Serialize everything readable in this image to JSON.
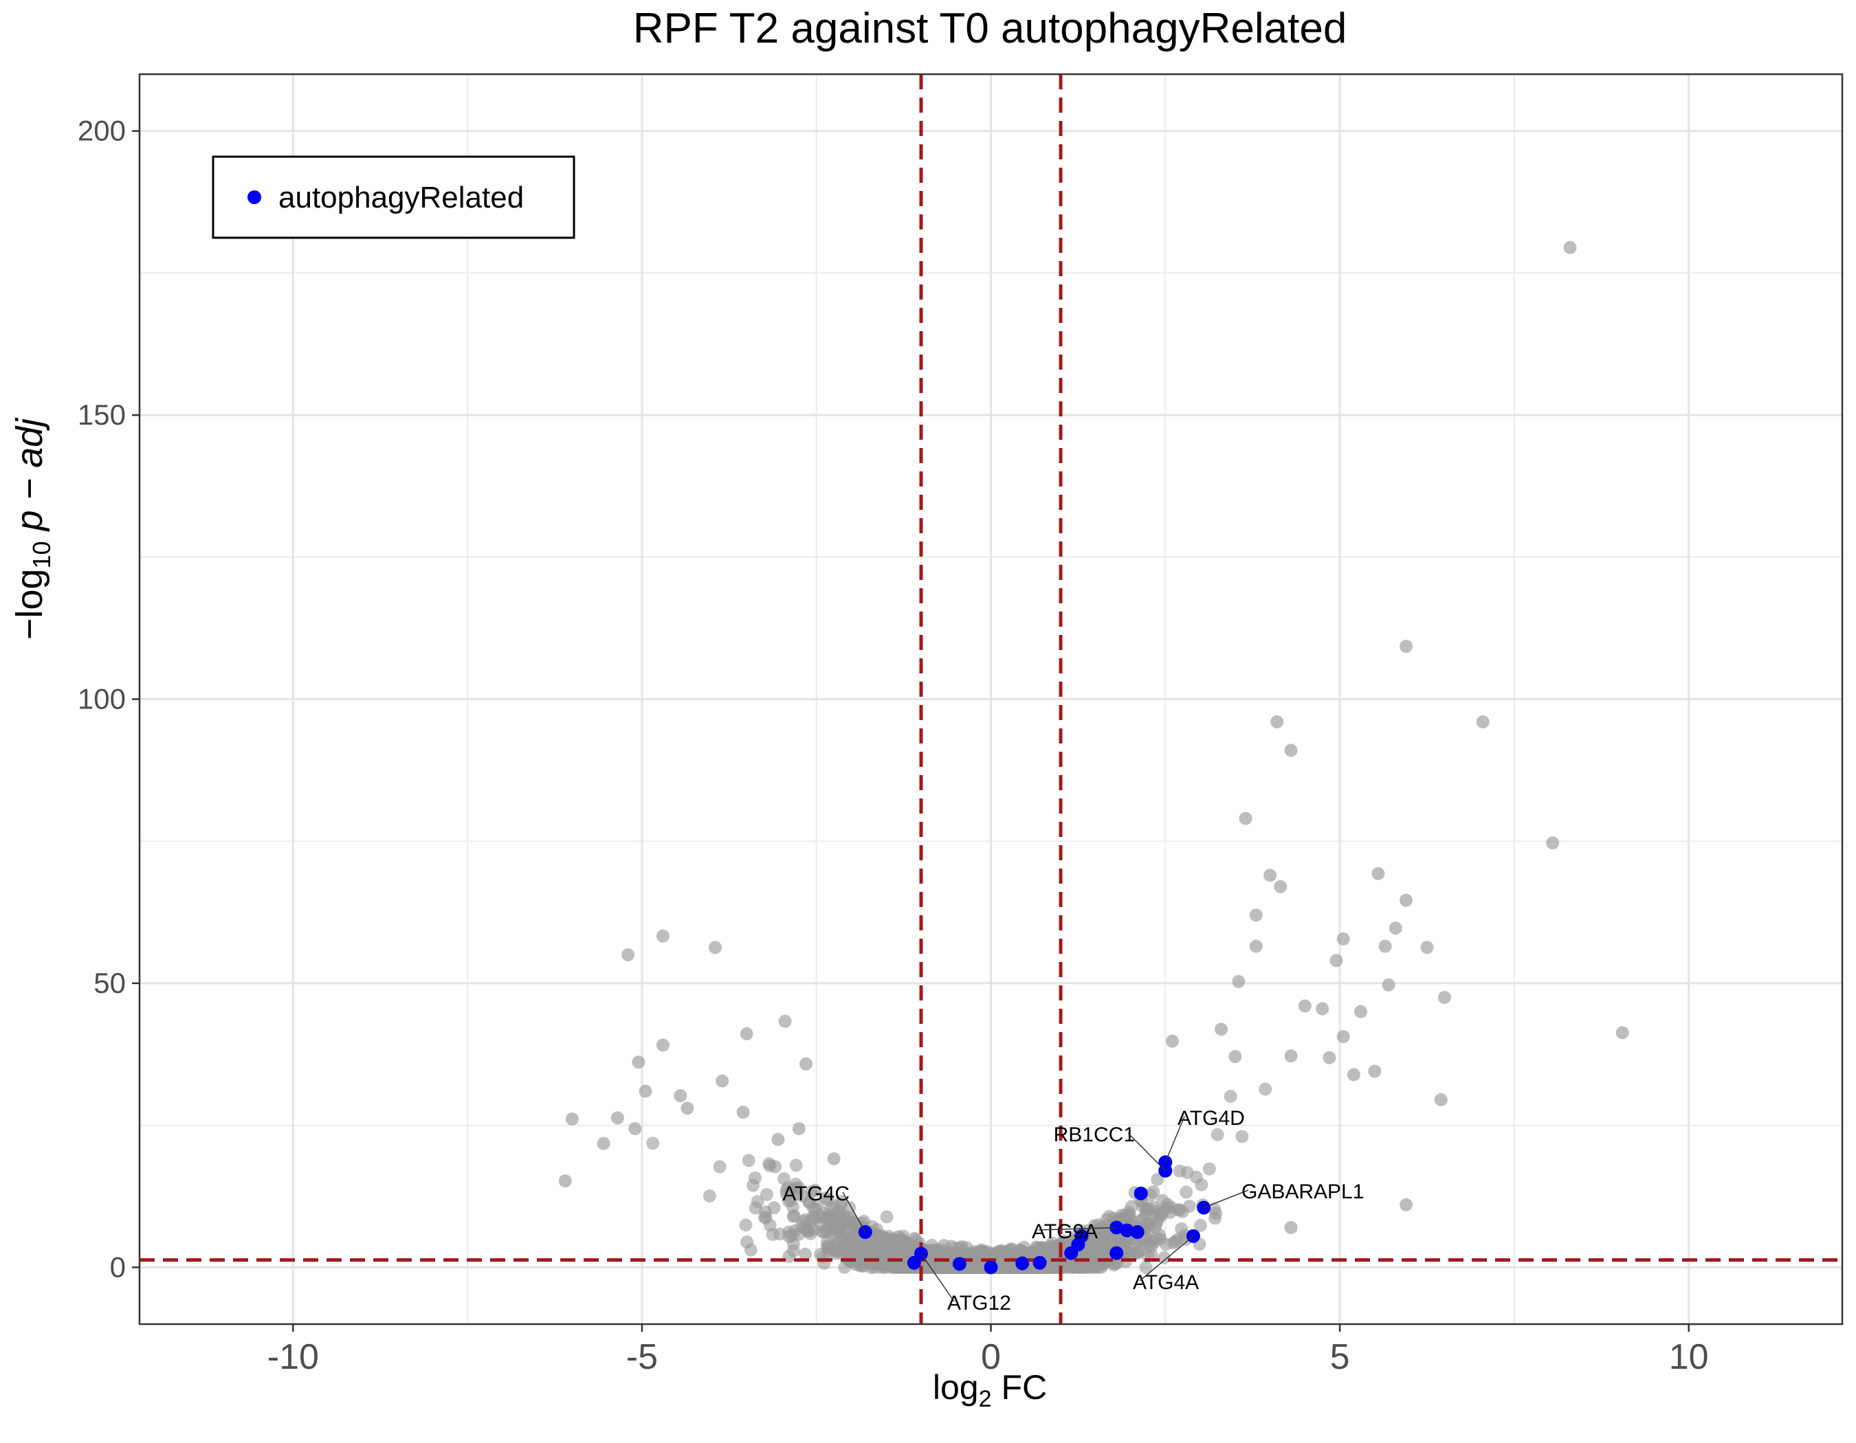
{
  "chart_data": {
    "type": "scatter",
    "title": "RPF T2 against T0 autophagyRelated",
    "xlabel": "log",
    "xlabel_sub": "2",
    "xlabel_suffix": " FC",
    "ylabel_prefix": "−log",
    "ylabel_sub": "10",
    "ylabel_suffix": " p − adj",
    "xlim": [
      -12.2,
      12.2
    ],
    "ylim": [
      -10,
      210
    ],
    "x_ticks": [
      -10,
      -5,
      0,
      5,
      10
    ],
    "x_tick_labels": [
      "-10",
      "-5",
      "0",
      "5",
      "10"
    ],
    "y_ticks": [
      0,
      50,
      100,
      150,
      200
    ],
    "y_tick_labels": [
      "0",
      "50",
      "100",
      "150",
      "200"
    ],
    "grid": true,
    "legend_position": "top-left",
    "legend_label": "autophagyRelated",
    "colors": {
      "background_points": "#999999",
      "highlight": "#0000ee",
      "threshold_lines": "#a01a1a",
      "grid": "#ebebeb"
    },
    "thresholds": {
      "x": [
        -1,
        1
      ],
      "y": 1.3
    },
    "series": [
      {
        "name": "autophagyRelated",
        "points": [
          {
            "x": -1.8,
            "y": 6.2
          },
          {
            "x": -1.1,
            "y": 0.8
          },
          {
            "x": -1.0,
            "y": 2.4
          },
          {
            "x": -0.45,
            "y": 0.6
          },
          {
            "x": 0.0,
            "y": 0.0
          },
          {
            "x": 0.45,
            "y": 0.7
          },
          {
            "x": 0.7,
            "y": 0.8
          },
          {
            "x": 1.15,
            "y": 2.5
          },
          {
            "x": 1.25,
            "y": 4.0
          },
          {
            "x": 1.3,
            "y": 5.5
          },
          {
            "x": 1.8,
            "y": 2.5
          },
          {
            "x": 1.8,
            "y": 7.0
          },
          {
            "x": 1.95,
            "y": 6.5
          },
          {
            "x": 2.1,
            "y": 6.2
          },
          {
            "x": 2.15,
            "y": 13.0
          },
          {
            "x": 2.5,
            "y": 17.0
          },
          {
            "x": 2.5,
            "y": 18.5
          },
          {
            "x": 2.9,
            "y": 5.5
          },
          {
            "x": 3.05,
            "y": 10.5
          }
        ]
      }
    ],
    "background_outliers": [
      {
        "x": 8.3,
        "y": 179.5
      },
      {
        "x": 5.95,
        "y": 109.3
      },
      {
        "x": 7.05,
        "y": 96.0
      },
      {
        "x": 4.1,
        "y": 96.0
      },
      {
        "x": 4.3,
        "y": 91.0
      },
      {
        "x": 3.65,
        "y": 79.0
      },
      {
        "x": 8.05,
        "y": 74.7
      },
      {
        "x": 4.0,
        "y": 69.0
      },
      {
        "x": 4.15,
        "y": 67.0
      },
      {
        "x": 5.55,
        "y": 69.3
      },
      {
        "x": 5.95,
        "y": 64.6
      },
      {
        "x": 3.8,
        "y": 62.0
      },
      {
        "x": 5.8,
        "y": 59.7
      },
      {
        "x": 5.05,
        "y": 57.8
      },
      {
        "x": 5.65,
        "y": 56.5
      },
      {
        "x": 6.25,
        "y": 56.3
      },
      {
        "x": 3.8,
        "y": 56.5
      },
      {
        "x": 4.95,
        "y": 54.0
      },
      {
        "x": 5.7,
        "y": 49.7
      },
      {
        "x": 3.55,
        "y": 50.3
      },
      {
        "x": 6.5,
        "y": 47.5
      },
      {
        "x": 4.5,
        "y": 46.0
      },
      {
        "x": 4.75,
        "y": 45.5
      },
      {
        "x": 5.3,
        "y": 45.0
      },
      {
        "x": 9.05,
        "y": 41.3
      },
      {
        "x": 3.3,
        "y": 41.9
      },
      {
        "x": 5.05,
        "y": 40.6
      },
      {
        "x": 2.6,
        "y": 39.8
      },
      {
        "x": 3.5,
        "y": 37.1
      },
      {
        "x": 4.85,
        "y": 36.9
      },
      {
        "x": 4.3,
        "y": 37.2
      },
      {
        "x": 5.2,
        "y": 33.9
      },
      {
        "x": 6.45,
        "y": 29.5
      },
      {
        "x": 5.5,
        "y": 34.5
      },
      {
        "x": 5.95,
        "y": 11.0
      },
      {
        "x": 4.3,
        "y": 7.0
      },
      {
        "x": -4.7,
        "y": 58.3
      },
      {
        "x": -5.2,
        "y": 55.0
      },
      {
        "x": -3.95,
        "y": 56.3
      },
      {
        "x": -2.95,
        "y": 43.3
      },
      {
        "x": -3.5,
        "y": 41.1
      },
      {
        "x": -4.7,
        "y": 39.1
      },
      {
        "x": -5.05,
        "y": 36.1
      },
      {
        "x": -2.65,
        "y": 35.8
      },
      {
        "x": -6.0,
        "y": 26.1
      },
      {
        "x": -6.1,
        "y": 15.2
      },
      {
        "x": -5.55,
        "y": 21.8
      },
      {
        "x": -5.35,
        "y": 26.3
      },
      {
        "x": -4.95,
        "y": 31.0
      },
      {
        "x": -3.85,
        "y": 32.8
      },
      {
        "x": -4.35,
        "y": 28.0
      },
      {
        "x": -3.55,
        "y": 27.3
      },
      {
        "x": -2.75,
        "y": 24.4
      },
      {
        "x": -3.05,
        "y": 22.5
      },
      {
        "x": -2.25,
        "y": 19.1
      },
      {
        "x": -4.45,
        "y": 30.2
      },
      {
        "x": -5.1,
        "y": 24.4
      }
    ]
  }
}
